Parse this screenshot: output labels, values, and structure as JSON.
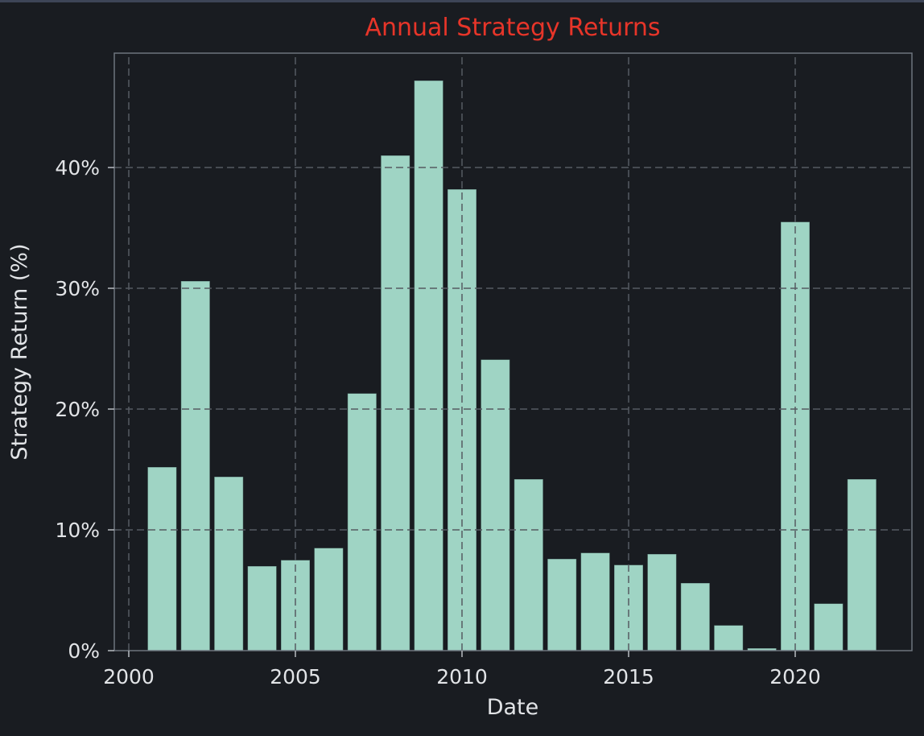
{
  "window": {
    "top_strip_color": "#3d4557"
  },
  "chart_data": {
    "type": "bar",
    "title": "Annual Strategy Returns",
    "xlabel": "Date",
    "ylabel": "Strategy Return (%)",
    "categories": [
      "2001",
      "2002",
      "2003",
      "2004",
      "2005",
      "2006",
      "2007",
      "2008",
      "2009",
      "2010",
      "2011",
      "2012",
      "2013",
      "2014",
      "2015",
      "2016",
      "2017",
      "2018",
      "2019",
      "2020",
      "2021",
      "2022"
    ],
    "values": [
      15.2,
      30.6,
      14.4,
      7.0,
      7.5,
      8.5,
      21.3,
      41.0,
      47.2,
      38.2,
      24.1,
      14.2,
      7.6,
      8.1,
      7.1,
      8.0,
      5.6,
      2.1,
      0.2,
      35.5,
      3.9,
      14.2
    ],
    "xticks": [
      {
        "label": "2000",
        "value": 2000
      },
      {
        "label": "2005",
        "value": 2005
      },
      {
        "label": "2010",
        "value": 2010
      },
      {
        "label": "2015",
        "value": 2015
      },
      {
        "label": "2020",
        "value": 2020
      }
    ],
    "yticks": [
      {
        "label": "0%",
        "value": 0
      },
      {
        "label": "10%",
        "value": 10
      },
      {
        "label": "20%",
        "value": 20
      },
      {
        "label": "30%",
        "value": 30
      },
      {
        "label": "40%",
        "value": 40
      }
    ],
    "xlim": [
      1999.55,
      2023.5
    ],
    "ylim": [
      0,
      49.5
    ],
    "grid": {
      "visible": true,
      "style": "dashed",
      "above_bars": true
    },
    "legend": {
      "visible": false
    },
    "colors": {
      "background": "#191c21",
      "bar": "#9fd4c4",
      "bar_edge": "rgba(16,22,26,0.45)",
      "title": "#e73529",
      "tick_label": "#e2e4e7",
      "axis_label": "#e2e4e7",
      "grid": "#565b62",
      "spine": "#6e747e",
      "tick_mark": "#aeb2b8"
    }
  }
}
